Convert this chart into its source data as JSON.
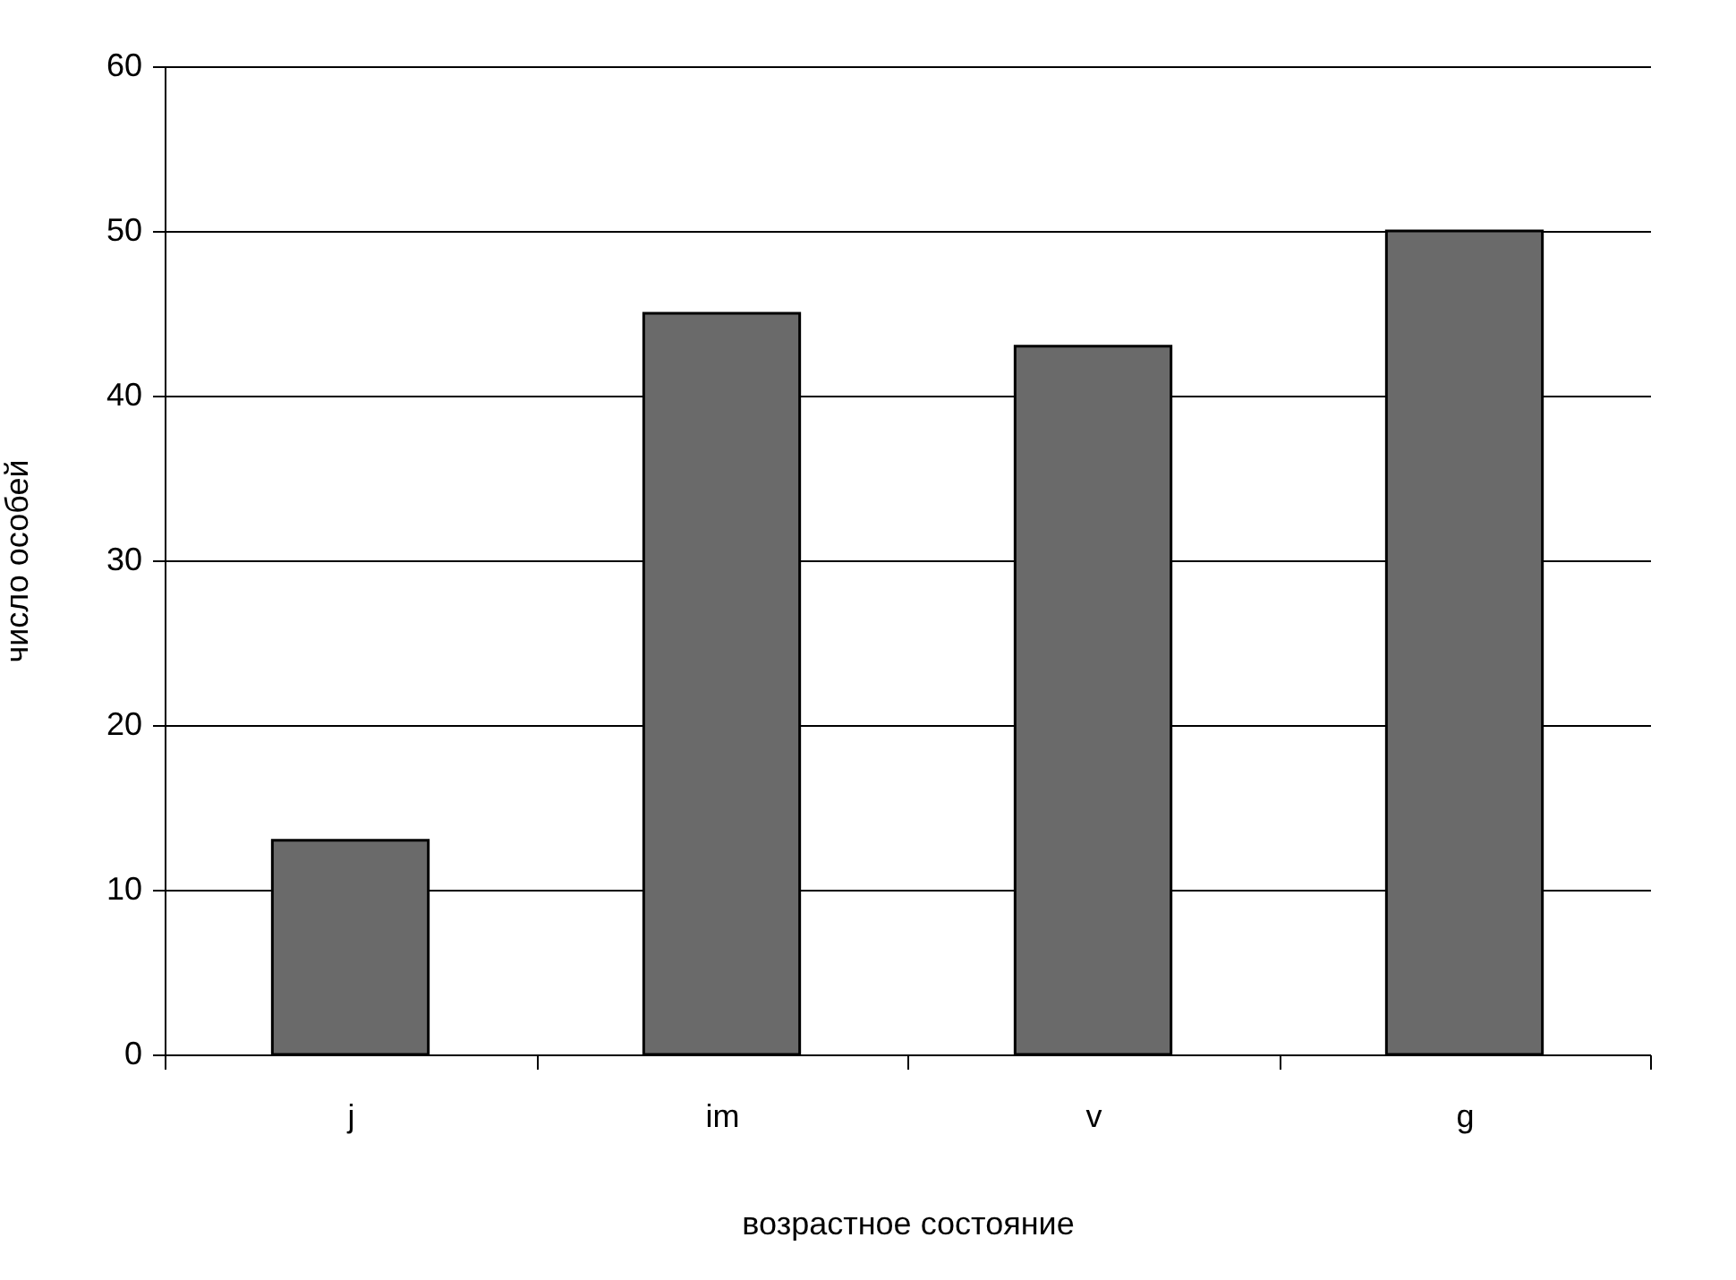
{
  "chart_data": {
    "type": "bar",
    "xlabel": "возрастное состояние",
    "ylabel": "число особей",
    "categories": [
      "j",
      "im",
      "v",
      "g"
    ],
    "values": [
      13,
      45,
      43,
      50
    ],
    "color": "#6a6a6a",
    "ylim": [
      0,
      60
    ],
    "yticks": [
      0,
      10,
      20,
      30,
      40,
      50,
      60
    ],
    "grid": "y"
  }
}
